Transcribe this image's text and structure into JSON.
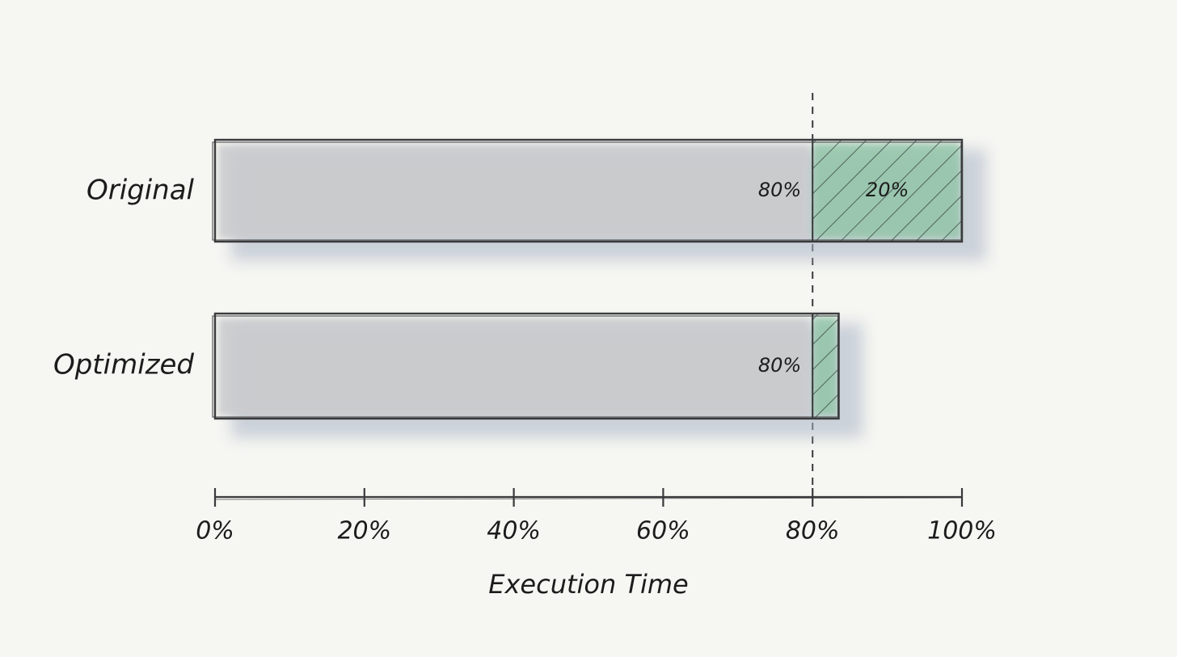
{
  "chart_data": {
    "type": "bar",
    "stacked": true,
    "orientation": "horizontal",
    "xlabel": "Execution Time",
    "xlim": [
      0,
      100
    ],
    "xticks": [
      "0%",
      "20%",
      "40%",
      "60%",
      "80%",
      "100%"
    ],
    "reference_line": 80,
    "categories": [
      "Original",
      "Optimized"
    ],
    "series": [
      {
        "values": [
          80,
          80
        ],
        "labels": [
          "80%",
          "80%"
        ],
        "color": "#c9cacc"
      },
      {
        "values": [
          20,
          3.5
        ],
        "labels": [
          "20%",
          ""
        ],
        "color": "#8fc4a5",
        "hatched": true
      }
    ],
    "colors": {
      "background": "#f6f6f2",
      "ink": "#3a3a3c",
      "shadow": "#a9b4c6"
    }
  }
}
